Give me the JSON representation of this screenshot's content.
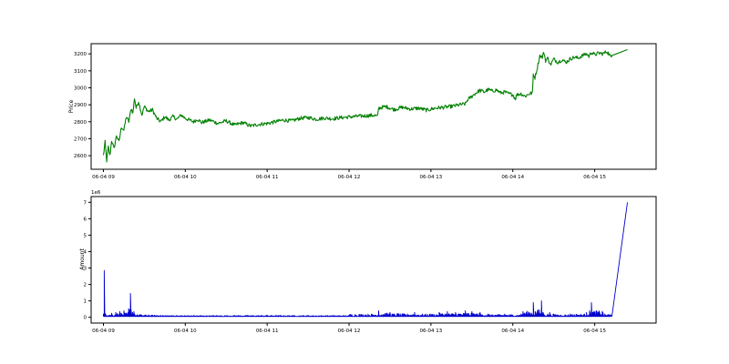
{
  "chart_data": [
    {
      "type": "line",
      "title": "",
      "xlabel": "",
      "ylabel": "Price",
      "x_tick_labels": [
        "06-04 09",
        "06-04 10",
        "06-04 11",
        "06-04 12",
        "06-04 13",
        "06-04 14",
        "06-04 15"
      ],
      "xlim_hours": [
        8.85,
        15.75
      ],
      "ylim": [
        2520,
        3260
      ],
      "y_ticks": [
        2600,
        2700,
        2800,
        2900,
        3000,
        3100,
        3200
      ],
      "grid": false,
      "series": [
        {
          "color": "#008000",
          "points": [
            [
              9.0,
              2600
            ],
            [
              9.02,
              2680
            ],
            [
              9.04,
              2570
            ],
            [
              9.06,
              2650
            ],
            [
              9.08,
              2600
            ],
            [
              9.1,
              2690
            ],
            [
              9.13,
              2640
            ],
            [
              9.16,
              2720
            ],
            [
              9.19,
              2680
            ],
            [
              9.22,
              2770
            ],
            [
              9.25,
              2750
            ],
            [
              9.28,
              2830
            ],
            [
              9.31,
              2800
            ],
            [
              9.34,
              2880
            ],
            [
              9.36,
              2850
            ],
            [
              9.38,
              2940
            ],
            [
              9.4,
              2880
            ],
            [
              9.43,
              2920
            ],
            [
              9.47,
              2840
            ],
            [
              9.5,
              2890
            ],
            [
              9.55,
              2860
            ],
            [
              9.6,
              2870
            ],
            [
              9.65,
              2820
            ],
            [
              9.7,
              2800
            ],
            [
              9.75,
              2830
            ],
            [
              9.8,
              2810
            ],
            [
              9.85,
              2830
            ],
            [
              9.9,
              2815
            ],
            [
              9.95,
              2840
            ],
            [
              10.0,
              2820
            ],
            [
              10.05,
              2810
            ],
            [
              10.1,
              2800
            ],
            [
              10.15,
              2815
            ],
            [
              10.2,
              2795
            ],
            [
              10.3,
              2810
            ],
            [
              10.4,
              2790
            ],
            [
              10.5,
              2805
            ],
            [
              10.6,
              2780
            ],
            [
              10.7,
              2795
            ],
            [
              10.8,
              2775
            ],
            [
              10.9,
              2785
            ],
            [
              11.0,
              2790
            ],
            [
              11.1,
              2800
            ],
            [
              11.2,
              2810
            ],
            [
              11.3,
              2805
            ],
            [
              11.4,
              2820
            ],
            [
              11.5,
              2825
            ],
            [
              11.6,
              2815
            ],
            [
              11.7,
              2822
            ],
            [
              11.8,
              2818
            ],
            [
              11.9,
              2824
            ],
            [
              12.0,
              2828
            ],
            [
              12.1,
              2832
            ],
            [
              12.2,
              2835
            ],
            [
              12.3,
              2838
            ],
            [
              12.35,
              2832
            ],
            [
              12.36,
              2880
            ],
            [
              12.45,
              2890
            ],
            [
              12.55,
              2872
            ],
            [
              12.65,
              2885
            ],
            [
              12.75,
              2875
            ],
            [
              12.85,
              2880
            ],
            [
              12.95,
              2868
            ],
            [
              13.05,
              2880
            ],
            [
              13.15,
              2885
            ],
            [
              13.25,
              2890
            ],
            [
              13.35,
              2900
            ],
            [
              13.42,
              2905
            ],
            [
              13.45,
              2930
            ],
            [
              13.5,
              2950
            ],
            [
              13.55,
              2970
            ],
            [
              13.6,
              2985
            ],
            [
              13.65,
              2975
            ],
            [
              13.7,
              2990
            ],
            [
              13.75,
              2980
            ],
            [
              13.8,
              2988
            ],
            [
              13.85,
              2970
            ],
            [
              13.9,
              2975
            ],
            [
              13.95,
              2965
            ],
            [
              14.0,
              2960
            ],
            [
              14.03,
              2935
            ],
            [
              14.05,
              2960
            ],
            [
              14.1,
              2965
            ],
            [
              14.15,
              2950
            ],
            [
              14.2,
              2965
            ],
            [
              14.24,
              2970
            ],
            [
              14.25,
              3080
            ],
            [
              14.27,
              3060
            ],
            [
              14.3,
              3120
            ],
            [
              14.33,
              3190
            ],
            [
              14.36,
              3180
            ],
            [
              14.38,
              3210
            ],
            [
              14.4,
              3160
            ],
            [
              14.43,
              3175
            ],
            [
              14.46,
              3135
            ],
            [
              14.5,
              3170
            ],
            [
              14.55,
              3150
            ],
            [
              14.6,
              3165
            ],
            [
              14.65,
              3150
            ],
            [
              14.7,
              3170
            ],
            [
              14.75,
              3180
            ],
            [
              14.8,
              3175
            ],
            [
              14.85,
              3190
            ],
            [
              14.9,
              3200
            ],
            [
              14.93,
              3185
            ],
            [
              14.96,
              3210
            ],
            [
              15.0,
              3195
            ],
            [
              15.05,
              3205
            ],
            [
              15.1,
              3200
            ],
            [
              15.15,
              3215
            ],
            [
              15.2,
              3180
            ],
            [
              15.21,
              3190
            ],
            [
              15.4,
              3225
            ]
          ]
        }
      ]
    },
    {
      "type": "line",
      "title": "",
      "xlabel": "",
      "ylabel": "Amount",
      "y_offset_label": "1e6",
      "x_tick_labels": [
        "06-04 09",
        "06-04 10",
        "06-04 11",
        "06-04 12",
        "06-04 13",
        "06-04 14",
        "06-04 15"
      ],
      "xlim_hours": [
        8.85,
        15.75
      ],
      "ylim": [
        -0.35,
        7.35
      ],
      "y_ticks": [
        0,
        1,
        2,
        3,
        4,
        5,
        6,
        7
      ],
      "grid": false,
      "series": [
        {
          "color": "#0000CC",
          "baseline": 0.05,
          "points": [
            [
              9.0,
              0.2
            ],
            [
              9.01,
              2.85
            ],
            [
              9.03,
              0.15
            ],
            [
              9.1,
              0.25
            ],
            [
              9.15,
              0.3
            ],
            [
              9.2,
              0.35
            ],
            [
              9.25,
              0.4
            ],
            [
              9.3,
              0.3
            ],
            [
              9.33,
              1.45
            ],
            [
              9.38,
              0.2
            ],
            [
              9.45,
              0.18
            ],
            [
              9.55,
              0.15
            ],
            [
              9.7,
              0.12
            ],
            [
              9.9,
              0.1
            ],
            [
              10.1,
              0.1
            ],
            [
              10.3,
              0.1
            ],
            [
              10.6,
              0.1
            ],
            [
              11.0,
              0.12
            ],
            [
              11.3,
              0.1
            ],
            [
              11.5,
              0.1
            ],
            [
              11.8,
              0.1
            ],
            [
              12.0,
              0.1
            ],
            [
              12.36,
              0.4
            ],
            [
              12.5,
              0.3
            ],
            [
              12.6,
              0.25
            ],
            [
              12.8,
              0.3
            ],
            [
              13.0,
              0.2
            ],
            [
              13.1,
              0.3
            ],
            [
              13.2,
              0.35
            ],
            [
              13.3,
              0.3
            ],
            [
              13.42,
              0.4
            ],
            [
              13.5,
              0.35
            ],
            [
              13.6,
              0.3
            ],
            [
              13.7,
              0.2
            ],
            [
              13.9,
              0.2
            ],
            [
              14.1,
              0.2
            ],
            [
              14.25,
              0.9
            ],
            [
              14.3,
              0.4
            ],
            [
              14.35,
              1.0
            ],
            [
              14.37,
              0.3
            ],
            [
              14.45,
              0.3
            ],
            [
              14.5,
              0.2
            ],
            [
              14.7,
              0.2
            ],
            [
              14.9,
              0.3
            ],
            [
              14.96,
              0.9
            ],
            [
              15.1,
              0.3
            ],
            [
              15.2,
              0.2
            ]
          ],
          "tail": [
            [
              15.21,
              0.05
            ],
            [
              15.4,
              7.0
            ]
          ]
        }
      ]
    }
  ]
}
